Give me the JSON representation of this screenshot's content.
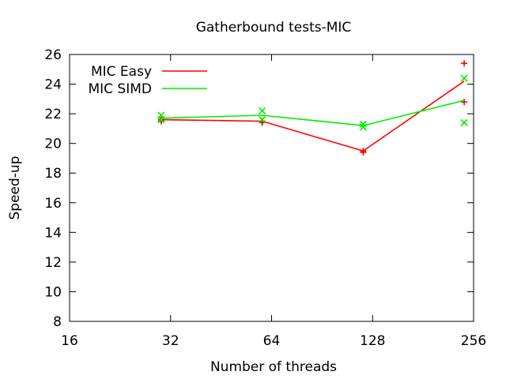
{
  "chart_data": {
    "type": "line",
    "title": "Gatherbound tests-MIC",
    "xlabel": "Number of threads",
    "ylabel": "Speed-up",
    "x_scale": "log2",
    "xlim": [
      16,
      256
    ],
    "ylim": [
      8,
      26
    ],
    "x_ticks": [
      "16",
      "32",
      "64",
      "128",
      "256"
    ],
    "y_ticks": [
      "8",
      "10",
      "12",
      "14",
      "16",
      "18",
      "20",
      "22",
      "24",
      "26"
    ],
    "grid": false,
    "legend_position": "top-left",
    "series": [
      {
        "name": "MIC Easy",
        "color": "#ff0000",
        "marker": "plus",
        "x": [
          30,
          60,
          120,
          240
        ],
        "y": [
          21.6,
          21.5,
          19.5,
          24.2
        ],
        "points": [
          {
            "x": 30,
            "y": 21.5
          },
          {
            "x": 30,
            "y": 21.6
          },
          {
            "x": 60,
            "y": 21.5
          },
          {
            "x": 60,
            "y": 21.4
          },
          {
            "x": 120,
            "y": 19.4
          },
          {
            "x": 120,
            "y": 19.5
          },
          {
            "x": 240,
            "y": 25.4
          },
          {
            "x": 240,
            "y": 22.8
          }
        ]
      },
      {
        "name": "MIC SIMD",
        "color": "#00ee00",
        "marker": "cross",
        "x": [
          30,
          60,
          120,
          240
        ],
        "y": [
          21.7,
          21.9,
          21.2,
          22.9
        ],
        "points": [
          {
            "x": 30,
            "y": 21.6
          },
          {
            "x": 30,
            "y": 21.9
          },
          {
            "x": 60,
            "y": 22.2
          },
          {
            "x": 60,
            "y": 21.6
          },
          {
            "x": 120,
            "y": 21.1
          },
          {
            "x": 120,
            "y": 21.3
          },
          {
            "x": 240,
            "y": 24.4
          },
          {
            "x": 240,
            "y": 21.4
          }
        ]
      }
    ]
  }
}
